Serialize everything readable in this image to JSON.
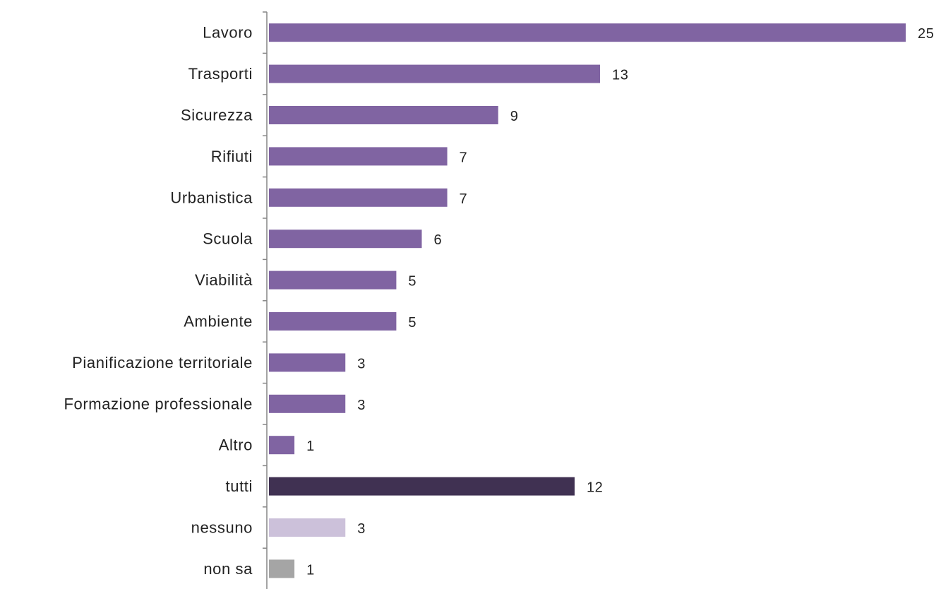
{
  "chart_data": {
    "type": "bar",
    "orientation": "horizontal",
    "title": "",
    "xlabel": "",
    "ylabel": "",
    "xlim": [
      0,
      25
    ],
    "grid": false,
    "legend": "none",
    "categories": [
      "Lavoro",
      "Trasporti",
      "Sicurezza",
      "Rifiuti",
      "Urbanistica",
      "Scuola",
      "Viabilità",
      "Ambiente",
      "Pianificazione territoriale",
      "Formazione professionale",
      "Altro",
      "tutti",
      "nessuno",
      "non sa"
    ],
    "values": [
      25,
      13,
      9,
      7,
      7,
      6,
      5,
      5,
      3,
      3,
      1,
      12,
      3,
      1
    ],
    "colors": [
      "#8064a2",
      "#8064a2",
      "#8064a2",
      "#8064a2",
      "#8064a2",
      "#8064a2",
      "#8064a2",
      "#8064a2",
      "#8064a2",
      "#8064a2",
      "#8064a2",
      "#403152",
      "#ccc1da",
      "#a5a5a5"
    ],
    "value_labels": [
      "25",
      "13",
      "9",
      "7",
      "7",
      "6",
      "5",
      "5",
      "3",
      "3",
      "1",
      "12",
      "3",
      "1"
    ]
  }
}
